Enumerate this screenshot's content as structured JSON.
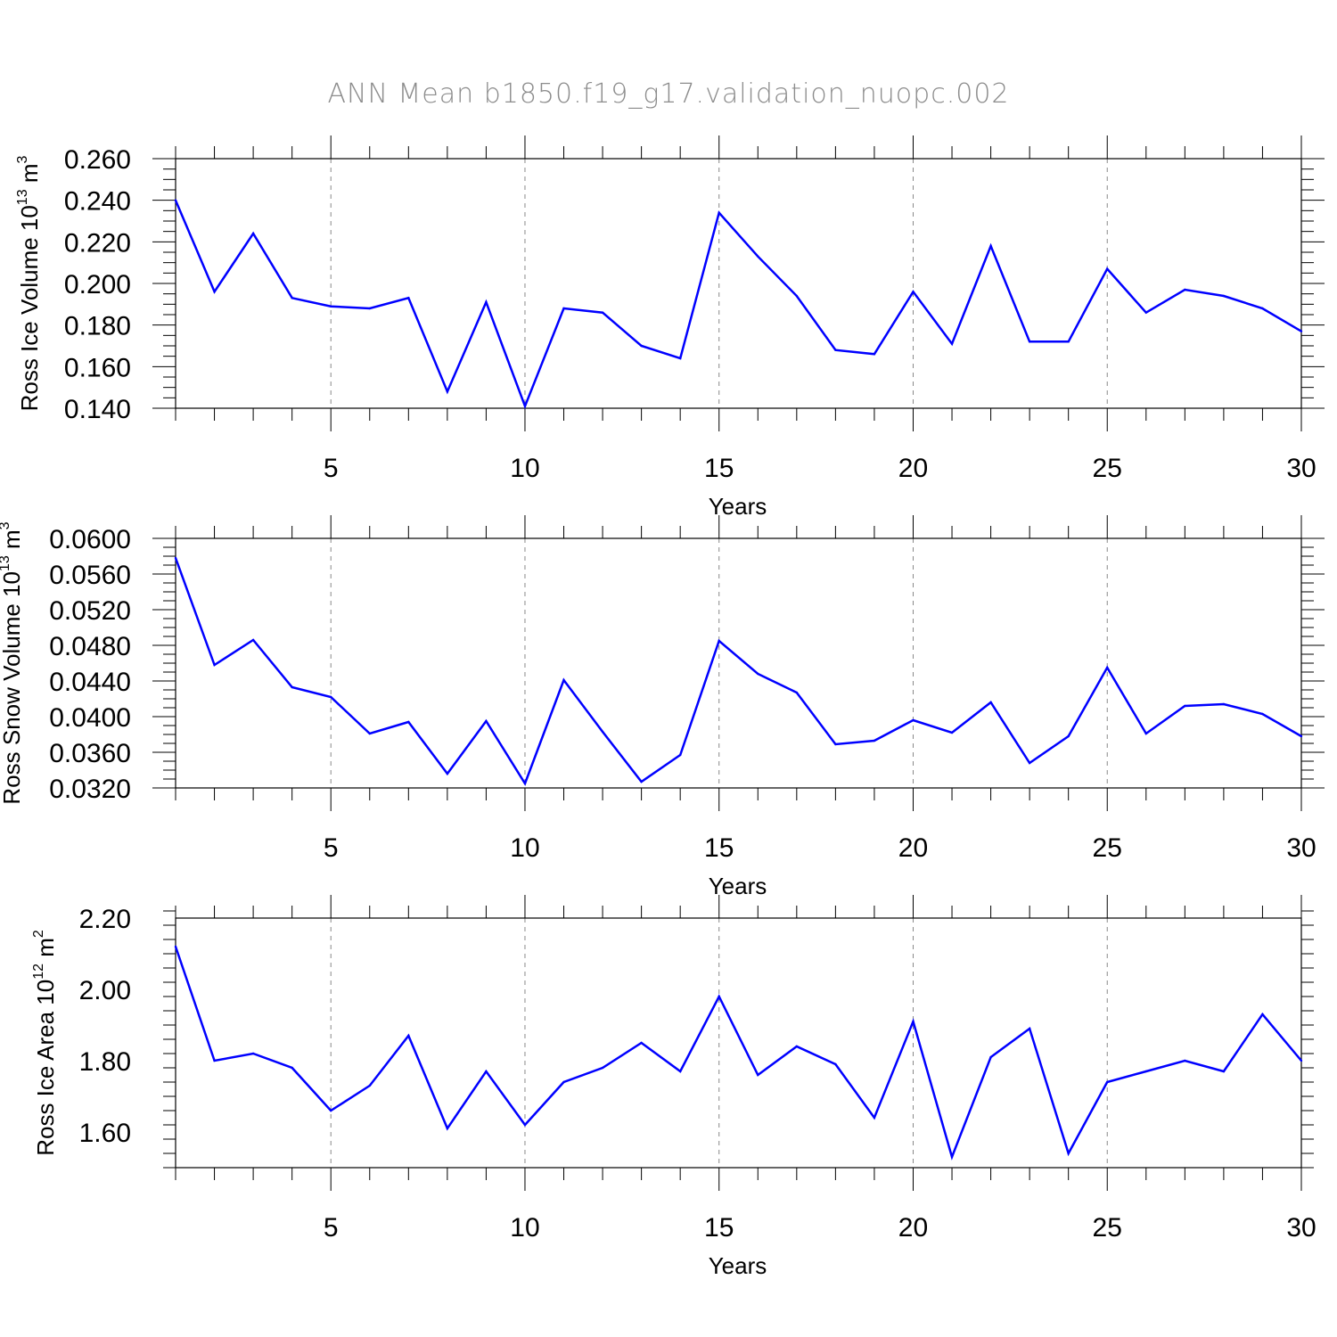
{
  "figure_title": "ANN Mean b1850.f19_g17.validation_nuopc.002",
  "colors": {
    "series": "#0000ff",
    "axis": "#000000",
    "grid": "#888888",
    "title": "#8c8c8c"
  },
  "chart_data": [
    {
      "type": "line",
      "title": "",
      "xlabel": "Years",
      "ylabel_main": "Ross Ice Volume 10",
      "ylabel_exp": "13",
      "ylabel_unit": " m",
      "ylabel_unit_exp": "3",
      "xlim": [
        1,
        30
      ],
      "ylim": [
        0.14,
        0.26
      ],
      "x_ticks": [
        5,
        10,
        15,
        20,
        25,
        30
      ],
      "x_tick_labels": [
        "5",
        "10",
        "15",
        "20",
        "25",
        "30"
      ],
      "y_ticks": [
        0.14,
        0.16,
        0.18,
        0.2,
        0.22,
        0.24,
        0.26
      ],
      "y_tick_labels": [
        "0.140",
        "0.160",
        "0.180",
        "0.200",
        "0.220",
        "0.240",
        "0.260"
      ],
      "y_minor_step": 0.005,
      "grid_x": true,
      "series": [
        {
          "name": "Ross Ice Volume",
          "x": [
            1,
            2,
            3,
            4,
            5,
            6,
            7,
            8,
            9,
            10,
            11,
            12,
            13,
            14,
            15,
            16,
            17,
            18,
            19,
            20,
            21,
            22,
            23,
            24,
            25,
            26,
            27,
            28,
            29,
            30
          ],
          "values": [
            0.24,
            0.196,
            0.224,
            0.193,
            0.189,
            0.188,
            0.193,
            0.148,
            0.191,
            0.141,
            0.188,
            0.186,
            0.17,
            0.164,
            0.234,
            0.213,
            0.194,
            0.168,
            0.166,
            0.196,
            0.171,
            0.218,
            0.172,
            0.172,
            0.207,
            0.186,
            0.197,
            0.194,
            0.188,
            0.177
          ]
        }
      ]
    },
    {
      "type": "line",
      "title": "",
      "xlabel": "Years",
      "ylabel_main": "Ross Snow Volume 10",
      "ylabel_exp": "13",
      "ylabel_unit": " m",
      "ylabel_unit_exp": "3",
      "xlim": [
        1,
        30
      ],
      "ylim": [
        0.032,
        0.06
      ],
      "x_ticks": [
        5,
        10,
        15,
        20,
        25,
        30
      ],
      "x_tick_labels": [
        "5",
        "10",
        "15",
        "20",
        "25",
        "30"
      ],
      "y_ticks": [
        0.032,
        0.036,
        0.04,
        0.044,
        0.048,
        0.052,
        0.056,
        0.06
      ],
      "y_tick_labels": [
        "0.0320",
        "0.0360",
        "0.0400",
        "0.0440",
        "0.0480",
        "0.0520",
        "0.0560",
        "0.0600"
      ],
      "y_minor_step": 0.001,
      "grid_x": true,
      "series": [
        {
          "name": "Ross Snow Volume",
          "x": [
            1,
            2,
            3,
            4,
            5,
            6,
            7,
            8,
            9,
            10,
            11,
            12,
            13,
            14,
            15,
            16,
            17,
            18,
            19,
            20,
            21,
            22,
            23,
            24,
            25,
            26,
            27,
            28,
            29,
            30
          ],
          "values": [
            0.0578,
            0.0458,
            0.0486,
            0.0433,
            0.0422,
            0.0381,
            0.0394,
            0.0336,
            0.0395,
            0.0325,
            0.0441,
            0.0383,
            0.0327,
            0.0357,
            0.0485,
            0.0448,
            0.0427,
            0.0369,
            0.0373,
            0.0396,
            0.0382,
            0.0416,
            0.0348,
            0.0378,
            0.0455,
            0.0381,
            0.0412,
            0.0414,
            0.0403,
            0.0378
          ]
        }
      ]
    },
    {
      "type": "line",
      "title": "",
      "xlabel": "Years",
      "ylabel_main": "Ross Ice Area 10",
      "ylabel_exp": "12",
      "ylabel_unit": " m",
      "ylabel_unit_exp": "2",
      "xlim": [
        1,
        30
      ],
      "ylim": [
        1.5,
        2.2
      ],
      "x_ticks": [
        5,
        10,
        15,
        20,
        25,
        30
      ],
      "x_tick_labels": [
        "5",
        "10",
        "15",
        "20",
        "25",
        "30"
      ],
      "y_ticks": [
        1.6,
        1.8,
        2.0,
        2.2
      ],
      "y_tick_labels": [
        "1.60",
        "1.80",
        "2.00",
        "2.20"
      ],
      "y_minor_step": 0.04,
      "grid_x": true,
      "series": [
        {
          "name": "Ross Ice Area",
          "x": [
            1,
            2,
            3,
            4,
            5,
            6,
            7,
            8,
            9,
            10,
            11,
            12,
            13,
            14,
            15,
            16,
            17,
            18,
            19,
            20,
            21,
            22,
            23,
            24,
            25,
            26,
            27,
            28,
            29,
            30
          ],
          "values": [
            2.12,
            1.8,
            1.82,
            1.78,
            1.66,
            1.73,
            1.87,
            1.61,
            1.77,
            1.62,
            1.74,
            1.78,
            1.85,
            1.77,
            1.98,
            1.76,
            1.84,
            1.79,
            1.64,
            1.91,
            1.53,
            1.81,
            1.89,
            1.54,
            1.74,
            1.77,
            1.8,
            1.77,
            1.93,
            1.8
          ]
        }
      ]
    }
  ]
}
